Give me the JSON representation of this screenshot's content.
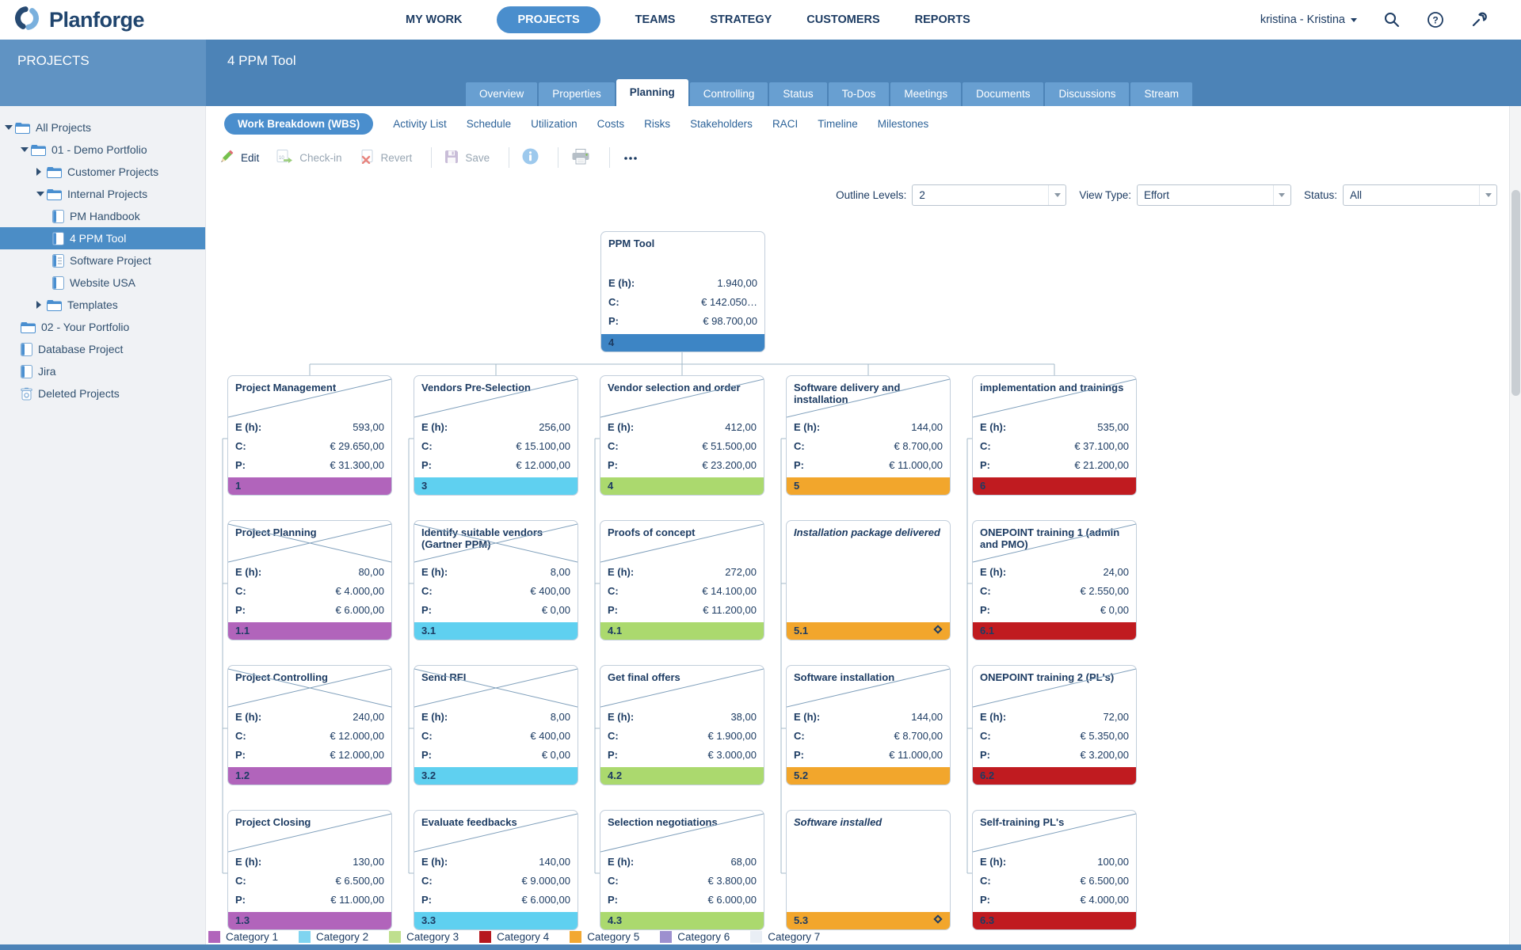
{
  "topbar": {
    "logo": "Planforge",
    "nav": [
      {
        "label": "MY WORK",
        "active": false
      },
      {
        "label": "PROJECTS",
        "active": true
      },
      {
        "label": "TEAMS",
        "active": false
      },
      {
        "label": "STRATEGY",
        "active": false
      },
      {
        "label": "CUSTOMERS",
        "active": false
      },
      {
        "label": "REPORTS",
        "active": false
      }
    ],
    "user": "kristina - Kristina",
    "icons": [
      "search-icon",
      "help-icon",
      "admin-wrench-icon"
    ]
  },
  "header": {
    "sidebar_title": "PROJECTS",
    "page_title": "4 PPM Tool"
  },
  "tabs": [
    {
      "label": "Overview",
      "active": false
    },
    {
      "label": "Properties",
      "active": false
    },
    {
      "label": "Planning",
      "active": true
    },
    {
      "label": "Controlling",
      "active": false
    },
    {
      "label": "Status",
      "active": false
    },
    {
      "label": "To-Dos",
      "active": false
    },
    {
      "label": "Meetings",
      "active": false
    },
    {
      "label": "Documents",
      "active": false
    },
    {
      "label": "Discussions",
      "active": false
    },
    {
      "label": "Stream",
      "active": false
    }
  ],
  "sidebar": {
    "items": [
      {
        "label": "All Projects",
        "depth": 0,
        "icon": "folder",
        "arrow": "down",
        "selected": false
      },
      {
        "label": "01 - Demo Portfolio",
        "depth": 1,
        "icon": "folder",
        "arrow": "down",
        "selected": false
      },
      {
        "label": "Customer Projects",
        "depth": 2,
        "icon": "folder",
        "arrow": "right",
        "selected": false
      },
      {
        "label": "Internal Projects",
        "depth": 2,
        "icon": "folder",
        "arrow": "down",
        "selected": false
      },
      {
        "label": "PM Handbook",
        "depth": 3,
        "icon": "project",
        "arrow": "none",
        "selected": false
      },
      {
        "label": "4 PPM Tool",
        "depth": 3,
        "icon": "project",
        "arrow": "none",
        "selected": true
      },
      {
        "label": "Software Project",
        "depth": 3,
        "icon": "project-lines",
        "arrow": "none",
        "selected": false
      },
      {
        "label": "Website USA",
        "depth": 3,
        "icon": "project",
        "arrow": "none",
        "selected": false
      },
      {
        "label": "Templates",
        "depth": 2,
        "icon": "folder",
        "arrow": "right",
        "selected": false
      },
      {
        "label": "02 - Your Portfolio",
        "depth": 1,
        "icon": "folder",
        "arrow": "none",
        "selected": false
      },
      {
        "label": "Database Project",
        "depth": 1,
        "icon": "project",
        "arrow": "none",
        "selected": false
      },
      {
        "label": "Jira",
        "depth": 1,
        "icon": "project",
        "arrow": "none",
        "selected": false
      },
      {
        "label": "Deleted Projects",
        "depth": 1,
        "icon": "trash",
        "arrow": "none",
        "selected": false
      }
    ]
  },
  "subtabs": [
    {
      "label": "Work Breakdown (WBS)",
      "active": true
    },
    {
      "label": "Activity List",
      "active": false
    },
    {
      "label": "Schedule",
      "active": false
    },
    {
      "label": "Utilization",
      "active": false
    },
    {
      "label": "Costs",
      "active": false
    },
    {
      "label": "Risks",
      "active": false
    },
    {
      "label": "Stakeholders",
      "active": false
    },
    {
      "label": "RACI",
      "active": false
    },
    {
      "label": "Timeline",
      "active": false
    },
    {
      "label": "Milestones",
      "active": false
    }
  ],
  "toolbar": {
    "edit": "Edit",
    "checkin": "Check-in",
    "revert": "Revert",
    "save": "Save",
    "more": "more-ellipsis"
  },
  "filters": [
    {
      "label": "Outline Levels:",
      "value": "2"
    },
    {
      "label": "View Type:",
      "value": "Effort"
    },
    {
      "label": "Status:",
      "value": "All"
    }
  ],
  "wbs": {
    "value_labels": {
      "e": "E (h):",
      "c": "C:",
      "p": "P:"
    },
    "root": {
      "title": "PPM Tool",
      "num": "4",
      "color": "#3d85c5",
      "status": "none",
      "e": "1.940,00",
      "c": "€ 142.050…",
      "p": "€ 98.700,00"
    },
    "columns": [
      {
        "color": "#b164bb",
        "parent": {
          "title": "Project Management",
          "num": "1",
          "status": "started",
          "e": "593,00",
          "c": "€ 29.650,00",
          "p": "€ 31.300,00"
        },
        "children": [
          {
            "title": "Project Planning",
            "num": "1.1",
            "status": "done",
            "e": "80,00",
            "c": "€ 4.000,00",
            "p": "€ 6.000,00"
          },
          {
            "title": "Project Controlling",
            "num": "1.2",
            "status": "done",
            "e": "240,00",
            "c": "€ 12.000,00",
            "p": "€ 12.000,00"
          },
          {
            "title": "Project Closing",
            "num": "1.3",
            "status": "started",
            "e": "130,00",
            "c": "€ 6.500,00",
            "p": "€ 11.000,00"
          }
        ]
      },
      {
        "color": "#5fd0f0",
        "parent": {
          "title": "Vendors Pre-Selection",
          "num": "3",
          "status": "started",
          "e": "256,00",
          "c": "€ 15.100,00",
          "p": "€ 12.000,00"
        },
        "children": [
          {
            "title": "Identify suitable vendors (Gartner PPM)",
            "num": "3.1",
            "status": "done",
            "e": "8,00",
            "c": "€ 400,00",
            "p": "€ 0,00"
          },
          {
            "title": "Send RFI",
            "num": "3.2",
            "status": "done",
            "e": "8,00",
            "c": "€ 400,00",
            "p": "€ 0,00"
          },
          {
            "title": "Evaluate feedbacks",
            "num": "3.3",
            "status": "started",
            "e": "140,00",
            "c": "€ 9.000,00",
            "p": "€ 6.000,00"
          }
        ]
      },
      {
        "color": "#abd96e",
        "parent": {
          "title": "Vendor selection and order",
          "num": "4",
          "status": "started",
          "e": "412,00",
          "c": "€ 51.500,00",
          "p": "€ 23.200,00"
        },
        "children": [
          {
            "title": "Proofs of concept",
            "num": "4.1",
            "status": "started",
            "e": "272,00",
            "c": "€ 14.100,00",
            "p": "€ 11.200,00"
          },
          {
            "title": "Get final offers",
            "num": "4.2",
            "status": "started",
            "e": "38,00",
            "c": "€ 1.900,00",
            "p": "€ 3.000,00"
          },
          {
            "title": "Selection negotiations",
            "num": "4.3",
            "status": "started",
            "e": "68,00",
            "c": "€ 3.800,00",
            "p": "€ 6.000,00"
          }
        ]
      },
      {
        "color": "#f2a62c",
        "parent": {
          "title": "Software delivery and installation",
          "num": "5",
          "status": "started",
          "e": "144,00",
          "c": "€ 8.700,00",
          "p": "€ 11.000,00"
        },
        "children": [
          {
            "title": "Installation package delivered",
            "num": "5.1",
            "status": "milestone",
            "e": null,
            "c": null,
            "p": null
          },
          {
            "title": "Software installation",
            "num": "5.2",
            "status": "started",
            "e": "144,00",
            "c": "€ 8.700,00",
            "p": "€ 11.000,00"
          },
          {
            "title": "Software installed",
            "num": "5.3",
            "status": "milestone",
            "e": null,
            "c": null,
            "p": null
          }
        ]
      },
      {
        "color": "#c01b20",
        "parent": {
          "title": "implementation and trainings",
          "num": "6",
          "status": "started",
          "e": "535,00",
          "c": "€ 37.100,00",
          "p": "€ 21.200,00"
        },
        "children": [
          {
            "title": "ONEPOINT training 1 (admin and PMO)",
            "num": "6.1",
            "status": "started",
            "e": "24,00",
            "c": "€ 2.550,00",
            "p": "€ 0,00"
          },
          {
            "title": "ONEPOINT training 2 (PL's)",
            "num": "6.2",
            "status": "started",
            "e": "72,00",
            "c": "€ 5.350,00",
            "p": "€ 3.200,00"
          },
          {
            "title": "Self-training PL's",
            "num": "6.3",
            "status": "started",
            "e": "100,00",
            "c": "€ 6.500,00",
            "p": "€ 4.000,00"
          }
        ]
      }
    ]
  },
  "legend": [
    {
      "label": "Category 1",
      "color": "#b164bb"
    },
    {
      "label": "Category 2",
      "color": "#7fd4f0"
    },
    {
      "label": "Category 3",
      "color": "#bfdf8e"
    },
    {
      "label": "Category 4",
      "color": "#b6181e"
    },
    {
      "label": "Category 5",
      "color": "#f2a832"
    },
    {
      "label": "Category 6",
      "color": "#9d90cf"
    },
    {
      "label": "Category 7",
      "color": "#e9eef5"
    }
  ]
}
